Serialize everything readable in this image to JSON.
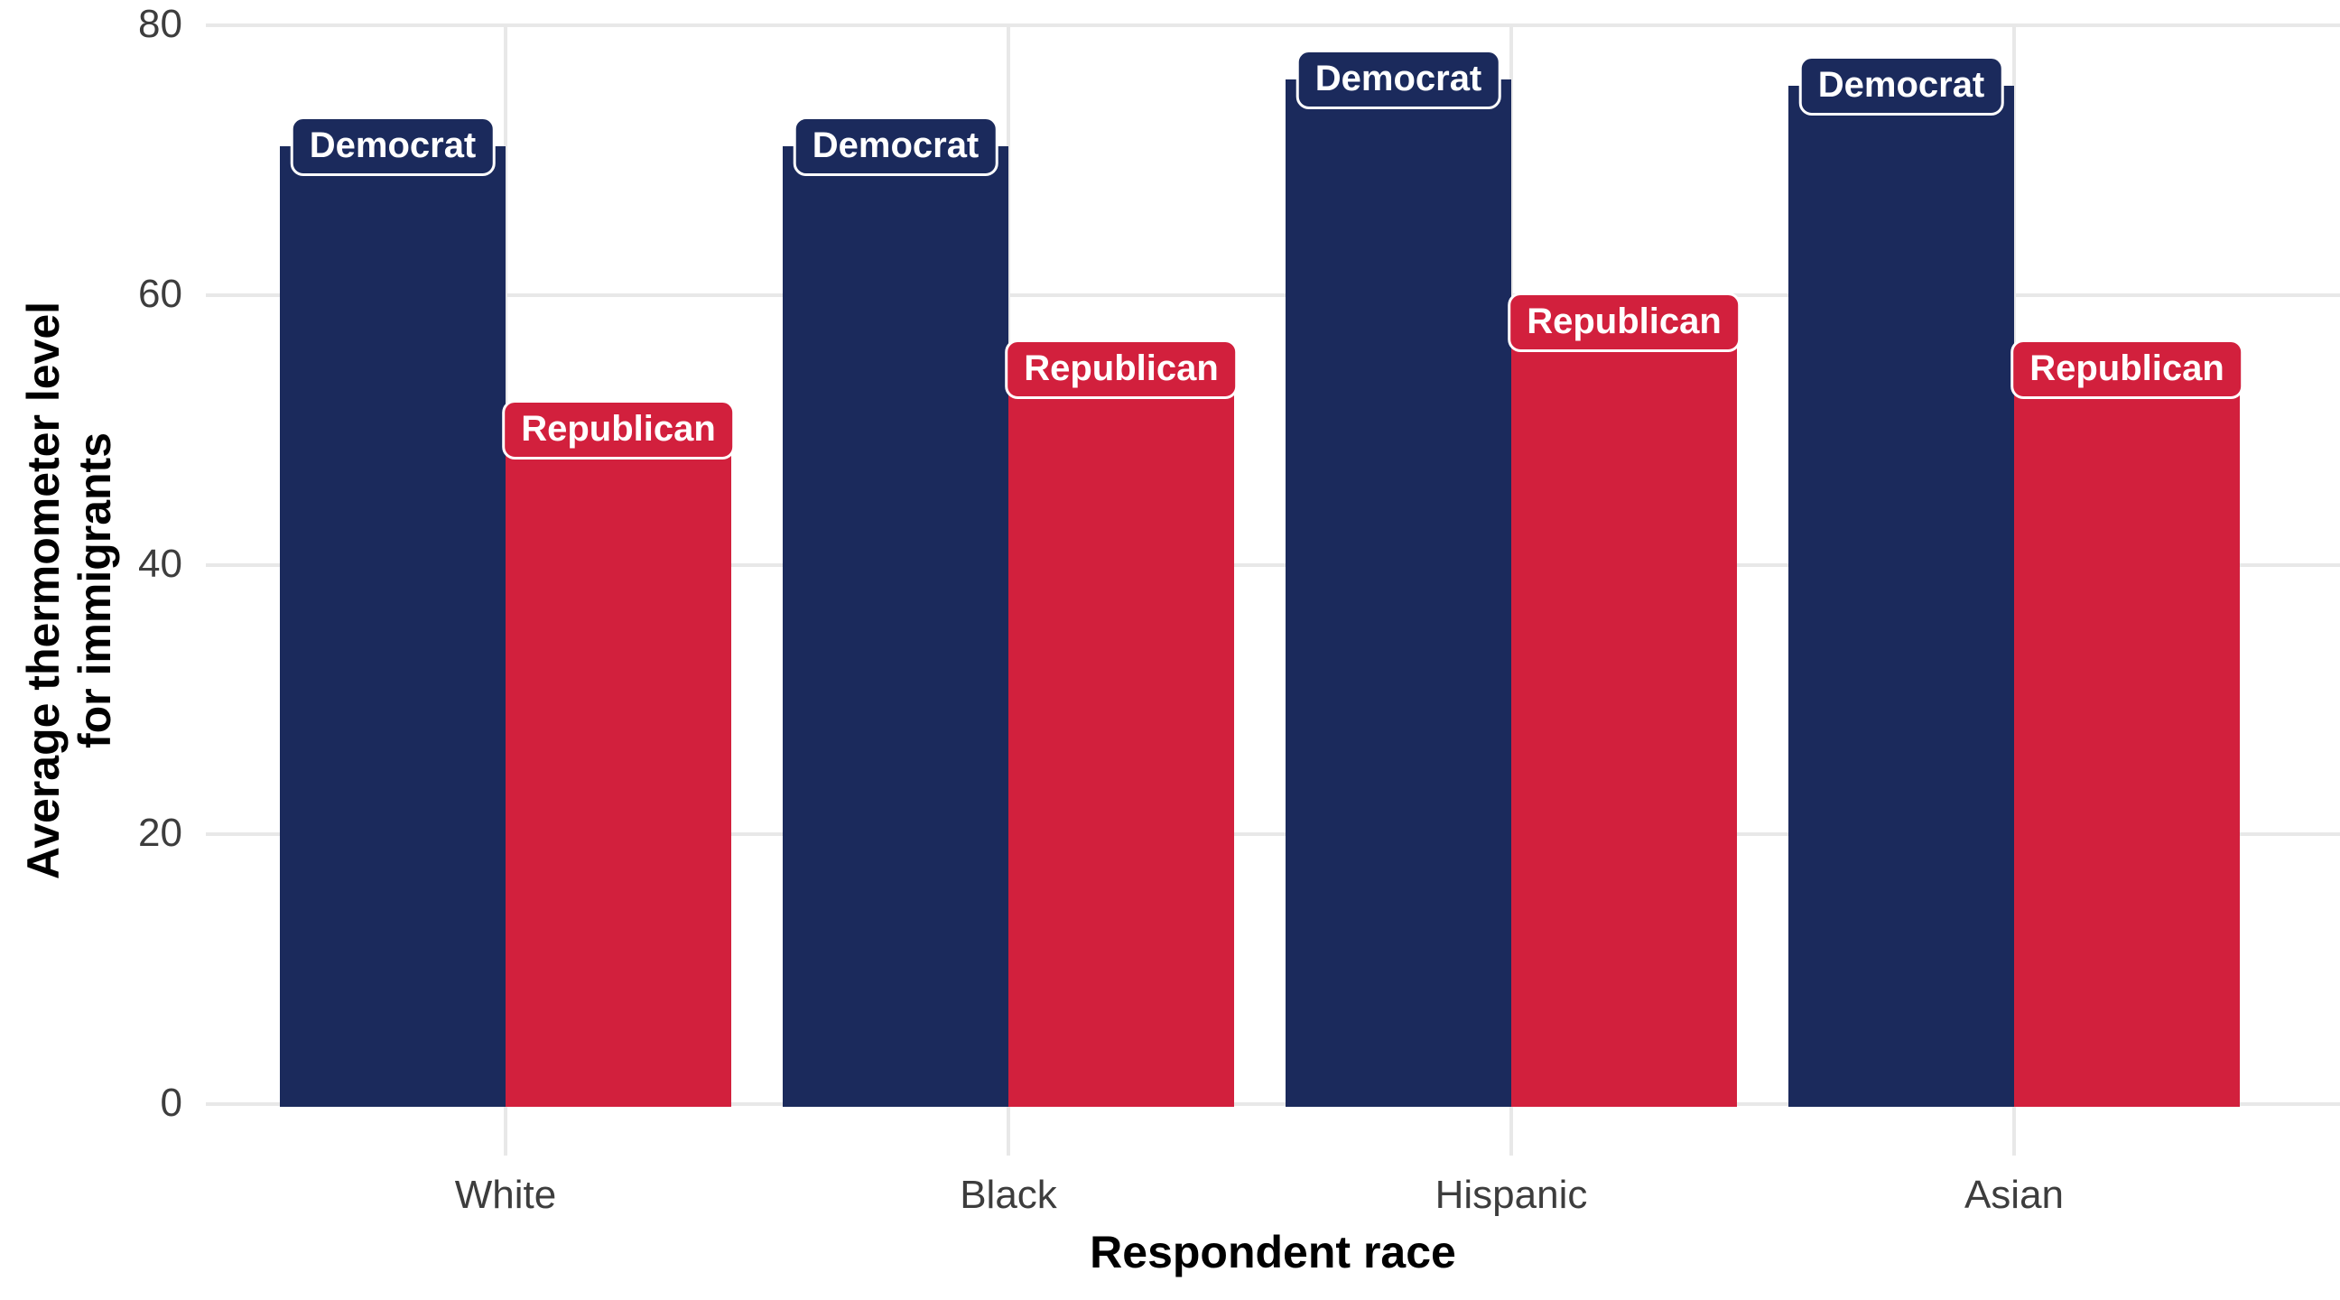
{
  "chart_data": {
    "type": "bar",
    "title": "",
    "categories": [
      "White",
      "Black",
      "Hispanic",
      "Asian"
    ],
    "series": [
      {
        "name": "Democrat",
        "color": "#1b2a5c",
        "values": [
          71,
          71,
          76,
          75.5
        ]
      },
      {
        "name": "Republican",
        "color": "#d2203d",
        "values": [
          50,
          54.5,
          58,
          54.5
        ]
      }
    ],
    "xlabel": "Respondent race",
    "ylabel": "Average thermometer level for immigrants",
    "ylim": [
      0,
      80
    ],
    "yticks": [
      0,
      20,
      40,
      60,
      80
    ],
    "grid": "horizontal gridlines at y ticks and one vertical gridline per category, light gray, no axis lines",
    "legend": "none - series labeled with white-bordered pills placed on top of each bar",
    "bar_label_style": "rounded rectangle filled with bar color, white border, white text"
  },
  "axes": {
    "x_title": "Respondent race",
    "y_title_lines": [
      "Average thermometer level",
      "for immigrants"
    ],
    "x_tick_labels": [
      "White",
      "Black",
      "Hispanic",
      "Asian"
    ],
    "y_tick_labels": [
      "0",
      "20",
      "40",
      "60",
      "80"
    ]
  },
  "colors": {
    "democrat": "#1b2a5c",
    "republican": "#d2203d",
    "gridline": "#e8e8e8",
    "tick_text": "#3d3d3d",
    "title_text": "#000000",
    "background": "#ffffff"
  }
}
